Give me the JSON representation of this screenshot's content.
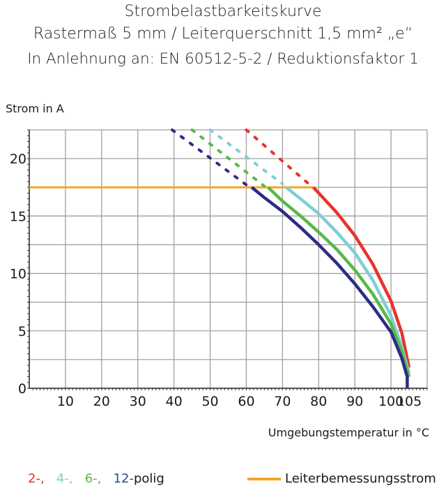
{
  "titles": [
    "Strombelastbarkeitskurve",
    "Rastermaß 5 mm / Leiterquerschnitt 1,5 mm² „e“",
    "In Anlehnung an: EN 60512-5-2 / Reduktionsfaktor 1"
  ],
  "chart_data": {
    "type": "line",
    "xlabel": "Umgebungstemperatur in °C",
    "ylabel": "Strom in A",
    "xlim": [
      0,
      110
    ],
    "ylim": [
      0,
      22.5
    ],
    "xticks": [
      10,
      20,
      30,
      40,
      50,
      60,
      70,
      80,
      90,
      100,
      105
    ],
    "yticks": [
      0,
      5,
      10,
      15,
      20
    ],
    "grid": true,
    "rated_current": {
      "name": "Leiterbemessungsstrom",
      "value": 17.5,
      "color": "#f5a623"
    },
    "series": [
      {
        "name": "2-",
        "color": "#e8332a",
        "dashed": [
          [
            60,
            22.5
          ],
          [
            78,
            17.6
          ]
        ],
        "solid": [
          [
            78.5,
            17.5
          ],
          [
            80,
            17
          ],
          [
            85,
            15.3
          ],
          [
            90,
            13.3
          ],
          [
            95,
            10.8
          ],
          [
            100,
            7.6
          ],
          [
            103,
            4.8
          ],
          [
            105,
            1.8
          ]
        ]
      },
      {
        "name": "4-",
        "color": "#7ecfd4",
        "dashed": [
          [
            50,
            22.5
          ],
          [
            70,
            17.8
          ]
        ],
        "solid": [
          [
            71,
            17.5
          ],
          [
            75,
            16.5
          ],
          [
            80,
            15.2
          ],
          [
            85,
            13.6
          ],
          [
            90,
            11.8
          ],
          [
            95,
            9.4
          ],
          [
            100,
            6.3
          ],
          [
            103,
            3.6
          ],
          [
            105,
            1.3
          ]
        ]
      },
      {
        "name": "6-",
        "color": "#5ab848",
        "dashed": [
          [
            45,
            22.5
          ],
          [
            65,
            17.6
          ]
        ],
        "solid": [
          [
            66,
            17.5
          ],
          [
            70,
            16.3
          ],
          [
            75,
            15
          ],
          [
            80,
            13.6
          ],
          [
            85,
            12.1
          ],
          [
            90,
            10.3
          ],
          [
            95,
            8.2
          ],
          [
            100,
            5.6
          ],
          [
            103,
            3.2
          ],
          [
            105,
            1
          ]
        ]
      },
      {
        "name": "12-",
        "color": "#2b2c86",
        "dashed": [
          [
            39.5,
            22.5
          ],
          [
            60.5,
            17.6
          ]
        ],
        "solid": [
          [
            61.5,
            17.5
          ],
          [
            65,
            16.6
          ],
          [
            70,
            15.4
          ],
          [
            75,
            14
          ],
          [
            80,
            12.5
          ],
          [
            85,
            10.9
          ],
          [
            90,
            9.1
          ],
          [
            95,
            7.1
          ],
          [
            100,
            4.9
          ],
          [
            103,
            2.6
          ],
          [
            104.5,
            1
          ],
          [
            104.5,
            0
          ]
        ]
      }
    ]
  },
  "legend": {
    "suffix": "polig"
  }
}
